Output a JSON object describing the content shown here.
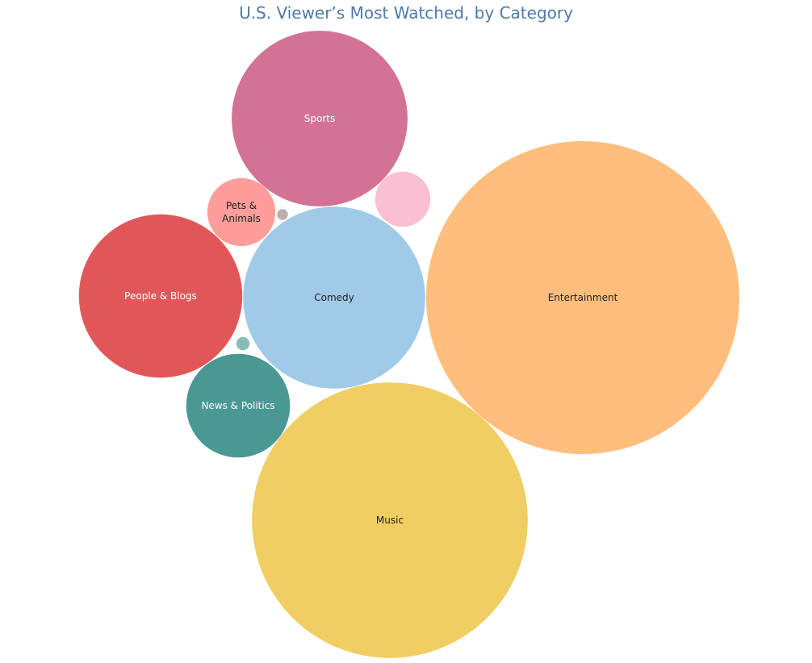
{
  "chart_data": {
    "type": "bubble",
    "title": "U.S. Viewer’s Most Watched, by Category",
    "categories": [
      {
        "label": "Entertainment",
        "value": 100,
        "color": "#ffbe7d",
        "text_color": "#222222"
      },
      {
        "label": "Music",
        "value": 77.5,
        "color": "#f1ce63",
        "text_color": "#222222"
      },
      {
        "label": "Comedy",
        "value": 33.8,
        "color": "#a0cbe8",
        "text_color": "#222222"
      },
      {
        "label": "Sports",
        "value": 31.5,
        "color": "#d37295",
        "text_color": "#ffffff"
      },
      {
        "label": "People & Blogs",
        "value": 27.2,
        "color": "#e15759",
        "text_color": "#ffffff"
      },
      {
        "label": "News & Politics",
        "value": 11.0,
        "color": "#499894",
        "text_color": "#ffffff"
      },
      {
        "label": "Pets & Animals",
        "value": 4.7,
        "color": "#ff9d9a",
        "text_color": "#222222"
      },
      {
        "label": "",
        "value": 3.1,
        "color": "#fabfd2",
        "text_color": "#222222"
      },
      {
        "label": "",
        "value": 0.18,
        "color": "#86bcb6",
        "text_color": "#222222"
      },
      {
        "label": "",
        "value": 0.12,
        "color": "#bab0ac",
        "text_color": "#222222"
      }
    ]
  }
}
